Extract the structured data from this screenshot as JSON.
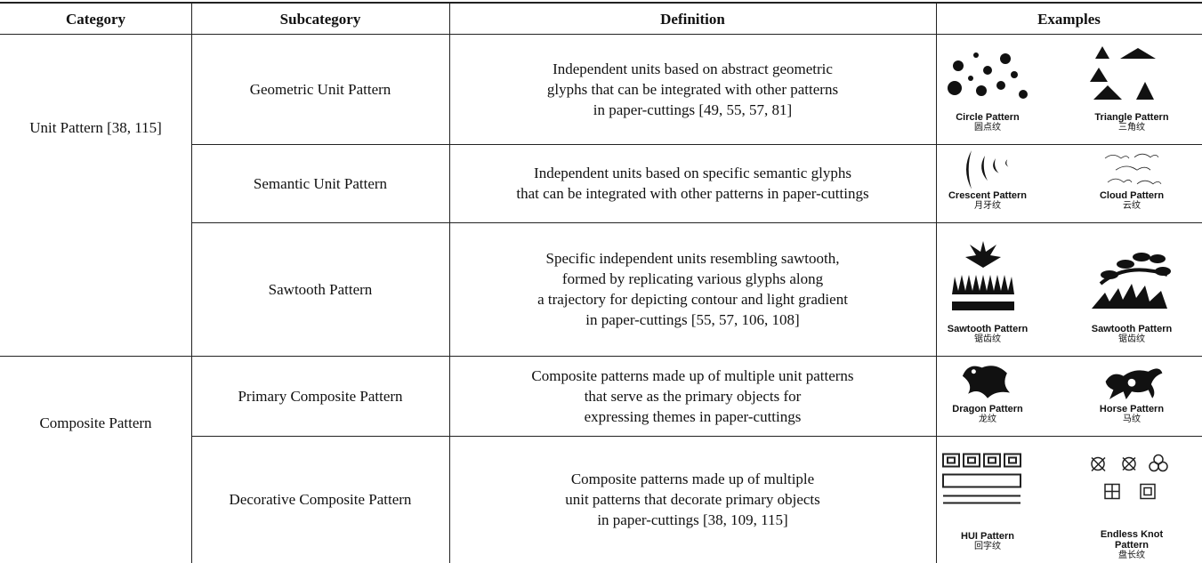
{
  "table": {
    "header": [
      "Category",
      "Subcategory",
      "Definition",
      "Examples"
    ],
    "groups": [
      {
        "category": "Unit Pattern [38, 115]",
        "rows": [
          {
            "subcategory": "Geometric Unit Pattern",
            "definition": [
              "Independent units based on abstract geometric",
              "glyphs that can be integrated with other patterns",
              "in paper-cuttings [49, 55, 57, 81]"
            ],
            "examples": [
              {
                "name": "Circle Pattern",
                "chinese": "圆点纹"
              },
              {
                "name": "Triangle Pattern",
                "chinese": "三角纹"
              }
            ]
          },
          {
            "subcategory": "Semantic Unit Pattern",
            "definition": [
              "Independent units based on specific semantic glyphs",
              "that can be integrated with other patterns in paper-cuttings"
            ],
            "examples": [
              {
                "name": "Crescent Pattern",
                "chinese": "月牙纹"
              },
              {
                "name": "Cloud Pattern",
                "chinese": "云纹"
              }
            ]
          },
          {
            "subcategory": "Sawtooth Pattern",
            "definition": [
              "Specific independent units resembling sawtooth,",
              "formed by replicating various glyphs along",
              "a trajectory for depicting contour and light gradient",
              "in paper-cuttings [55, 57, 106, 108]"
            ],
            "examples": [
              {
                "name": "Sawtooth Pattern",
                "chinese": "锯齿纹"
              },
              {
                "name": "Sawtooth Pattern",
                "chinese": "锯齿纹"
              }
            ]
          }
        ]
      },
      {
        "category": "Composite Pattern",
        "rows": [
          {
            "subcategory": "Primary Composite Pattern",
            "definition": [
              "Composite patterns made up of multiple unit patterns",
              "that serve as the primary objects for",
              "expressing themes in paper-cuttings"
            ],
            "examples": [
              {
                "name": "Dragon Pattern",
                "chinese": "龙纹"
              },
              {
                "name": "Horse Pattern",
                "chinese": "马纹"
              }
            ]
          },
          {
            "subcategory": "Decorative Composite Pattern",
            "definition": [
              "Composite patterns made up of multiple",
              "unit patterns that decorate primary objects",
              "in paper-cuttings [38, 109, 115]"
            ],
            "examples": [
              {
                "name": "HUI Pattern",
                "chinese": "回字纹"
              },
              {
                "name": "Endless Knot Pattern",
                "chinese": "盘长纹"
              }
            ]
          }
        ]
      }
    ]
  }
}
